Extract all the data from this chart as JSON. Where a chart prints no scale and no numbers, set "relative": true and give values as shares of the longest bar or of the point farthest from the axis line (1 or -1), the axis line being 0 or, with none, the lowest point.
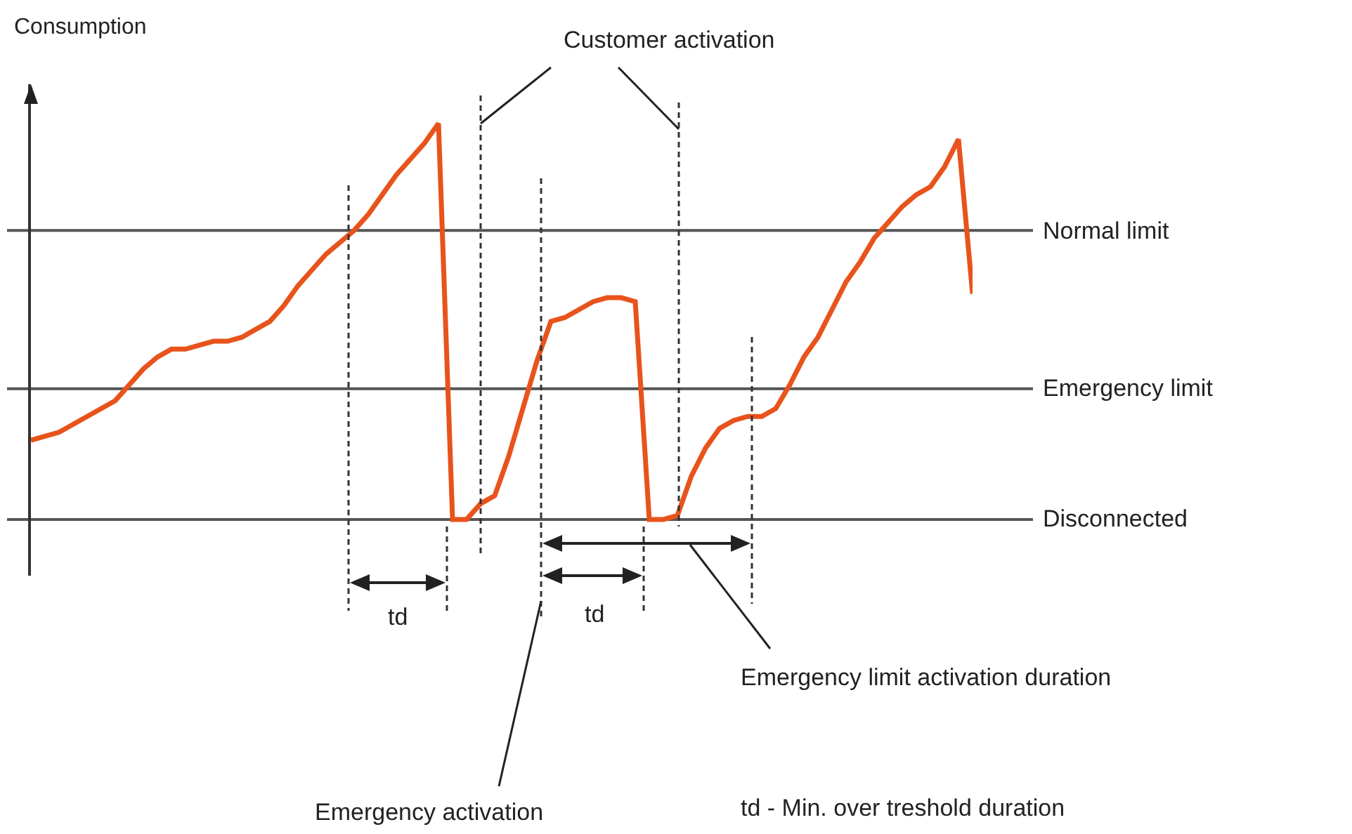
{
  "chart_data": {
    "type": "line",
    "ylabel": "Consumption",
    "relative": true,
    "tick_labels": false,
    "categories": [
      null,
      null,
      null,
      null,
      null,
      null,
      null,
      null,
      null,
      null,
      null,
      null,
      null,
      null,
      null,
      null,
      null,
      null,
      null,
      null,
      null,
      null,
      null,
      null,
      null,
      null,
      null,
      null,
      null,
      null,
      null,
      null,
      null,
      null,
      null,
      null,
      null,
      null,
      null,
      null,
      null,
      null,
      null,
      null,
      null,
      null,
      null,
      null,
      null,
      null,
      null,
      null,
      null,
      null,
      null,
      null,
      null,
      null,
      null,
      null,
      null,
      null,
      null,
      null,
      null,
      null,
      null,
      null
    ],
    "series": [
      {
        "color": "#e8531c",
        "values": [
          0.2,
          0.21,
          0.22,
          0.24,
          0.26,
          0.28,
          0.3,
          0.34,
          0.38,
          0.41,
          0.43,
          0.43,
          0.44,
          0.45,
          0.45,
          0.46,
          0.48,
          0.5,
          0.54,
          0.59,
          0.63,
          0.67,
          0.7,
          0.73,
          0.77,
          0.82,
          0.87,
          0.91,
          0.95,
          1.0,
          0,
          0,
          0.04,
          0.06,
          0.16,
          0.28,
          0.4,
          0.5,
          0.51,
          0.53,
          0.55,
          0.56,
          0.56,
          0.55,
          0,
          0,
          0.01,
          0.11,
          0.18,
          0.23,
          0.25,
          0.26,
          0.26,
          0.28,
          0.34,
          0.41,
          0.46,
          0.53,
          0.6,
          0.65,
          0.71,
          0.75,
          0.79,
          0.82,
          0.84,
          0.89,
          0.96,
          0.57
        ]
      }
    ],
    "ref_lines": [
      {
        "axis": "y",
        "value": 0.73,
        "label": "Normal limit",
        "color": "#555555"
      },
      {
        "axis": "y",
        "value": 0.33,
        "label": "Emergency limit",
        "color": "#555555"
      },
      {
        "axis": "y",
        "value": 0,
        "label": "Disconnected",
        "color": "#555555"
      }
    ],
    "annotations": [
      "Customer activation",
      "td",
      "td",
      "Emergency activation",
      "Emergency limit activation duration",
      "td - Min. over treshold duration"
    ]
  }
}
